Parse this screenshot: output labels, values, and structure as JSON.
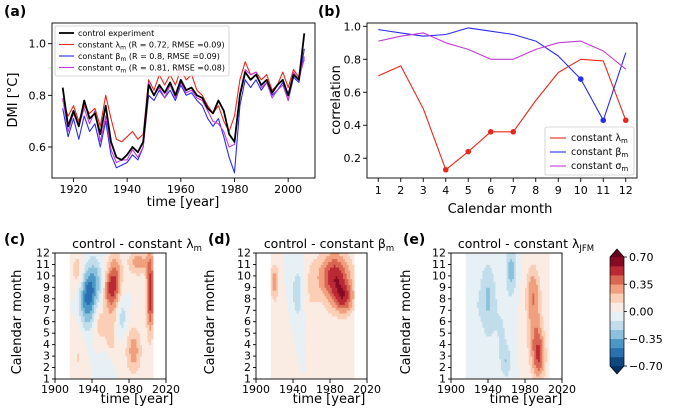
{
  "figure": {
    "panels": [
      {
        "label": "(a)"
      },
      {
        "label": "(b)"
      },
      {
        "label": "(c)",
        "title": "control - constant λ",
        "title_sub": "m"
      },
      {
        "label": "(d)",
        "title": "control - constant β",
        "title_sub": "m"
      },
      {
        "label": "(e)",
        "title": "control - constant λ",
        "title_sub": "JFM"
      }
    ]
  },
  "chart_data": [
    {
      "panel": "(a)",
      "type": "line",
      "xlabel": "time [year]",
      "ylabel": "DMI [°C]",
      "xlim": [
        1912,
        2010
      ],
      "ylim": [
        0.48,
        1.08
      ],
      "xticks": [
        1920,
        1940,
        1960,
        1980,
        2000
      ],
      "yticks": [
        0.6,
        0.8,
        1.0
      ],
      "legend": [
        "control experiment",
        "constant λm (R = 0.72, RMSE =0.09)",
        "constant βm (R = 0.8, RMSE =0.09)",
        "constant σm (R = 0.81, RMSE =0.08)"
      ],
      "x": [
        1916,
        1918,
        1920,
        1922,
        1924,
        1926,
        1928,
        1930,
        1932,
        1934,
        1936,
        1938,
        1940,
        1942,
        1944,
        1946,
        1948,
        1950,
        1952,
        1954,
        1956,
        1958,
        1960,
        1962,
        1964,
        1966,
        1968,
        1970,
        1972,
        1974,
        1976,
        1978,
        1980,
        1982,
        1984,
        1986,
        1988,
        1990,
        1992,
        1994,
        1996,
        1998,
        2000,
        2002,
        2004,
        2006
      ],
      "series": [
        {
          "name": "control experiment",
          "color": "#000000",
          "values": [
            0.83,
            0.68,
            0.74,
            0.68,
            0.78,
            0.71,
            0.73,
            0.65,
            0.76,
            0.62,
            0.56,
            0.55,
            0.57,
            0.6,
            0.58,
            0.62,
            0.84,
            0.8,
            0.84,
            0.81,
            0.85,
            0.8,
            0.86,
            0.82,
            0.83,
            0.8,
            0.79,
            0.75,
            0.73,
            0.78,
            0.74,
            0.65,
            0.62,
            0.8,
            0.89,
            0.86,
            0.88,
            0.84,
            0.86,
            0.81,
            0.84,
            0.86,
            0.8,
            0.88,
            0.86,
            1.04
          ]
        },
        {
          "name": "constant λm",
          "color": "#e8281c",
          "values": [
            0.78,
            0.72,
            0.76,
            0.7,
            0.76,
            0.73,
            0.75,
            0.68,
            0.8,
            0.71,
            0.63,
            0.62,
            0.64,
            0.66,
            0.63,
            0.65,
            0.86,
            0.82,
            0.88,
            0.84,
            0.88,
            0.84,
            0.9,
            0.86,
            0.88,
            0.82,
            0.8,
            0.76,
            0.73,
            0.76,
            0.7,
            0.66,
            0.72,
            0.86,
            0.93,
            0.88,
            0.89,
            0.86,
            0.88,
            0.82,
            0.84,
            0.89,
            0.83,
            0.9,
            0.87,
            0.94
          ]
        },
        {
          "name": "constant βm",
          "color": "#2b2bf0",
          "values": [
            0.75,
            0.64,
            0.71,
            0.63,
            0.72,
            0.66,
            0.69,
            0.6,
            0.7,
            0.57,
            0.52,
            0.53,
            0.54,
            0.57,
            0.55,
            0.6,
            0.8,
            0.78,
            0.82,
            0.79,
            0.82,
            0.78,
            0.84,
            0.8,
            0.81,
            0.78,
            0.76,
            0.71,
            0.68,
            0.71,
            0.64,
            0.56,
            0.5,
            0.76,
            0.86,
            0.83,
            0.86,
            0.82,
            0.85,
            0.8,
            0.82,
            0.85,
            0.78,
            0.87,
            0.85,
            0.98
          ]
        },
        {
          "name": "constant σm",
          "color": "#c33bd6",
          "values": [
            0.79,
            0.66,
            0.73,
            0.68,
            0.75,
            0.69,
            0.74,
            0.62,
            0.72,
            0.59,
            0.54,
            0.55,
            0.55,
            0.59,
            0.56,
            0.6,
            0.85,
            0.8,
            0.83,
            0.79,
            0.84,
            0.79,
            0.85,
            0.81,
            0.82,
            0.79,
            0.78,
            0.74,
            0.7,
            0.69,
            0.66,
            0.6,
            0.61,
            0.81,
            0.9,
            0.88,
            0.89,
            0.83,
            0.85,
            0.79,
            0.82,
            0.84,
            0.78,
            0.89,
            0.86,
            0.95
          ]
        }
      ]
    },
    {
      "panel": "(b)",
      "type": "line",
      "xlabel": "Calendar month",
      "ylabel": "correlation",
      "xlim": [
        0.5,
        12.5
      ],
      "ylim": [
        0.08,
        1.02
      ],
      "xticks": [
        1,
        2,
        3,
        4,
        5,
        6,
        7,
        8,
        9,
        10,
        11,
        12
      ],
      "yticks": [
        0.2,
        0.4,
        0.6,
        0.8,
        1.0
      ],
      "legend": [
        "constant λm",
        "constant βm",
        "constant σm"
      ],
      "x": [
        1,
        2,
        3,
        4,
        5,
        6,
        7,
        8,
        9,
        10,
        11,
        12
      ],
      "series": [
        {
          "name": "constant λm",
          "color": "#e8281c",
          "values": [
            0.7,
            0.76,
            0.5,
            0.13,
            0.24,
            0.36,
            0.36,
            0.55,
            0.72,
            0.8,
            0.79,
            0.43
          ],
          "markers_at": [
            4,
            5,
            6,
            7,
            12
          ]
        },
        {
          "name": "constant βm",
          "color": "#2b2bf0",
          "values": [
            0.98,
            0.96,
            0.94,
            0.95,
            0.99,
            0.97,
            0.95,
            0.91,
            0.82,
            0.68,
            0.43,
            0.84
          ],
          "markers_at": [
            10,
            11
          ]
        },
        {
          "name": "constant σm",
          "color": "#c33bd6",
          "values": [
            0.91,
            0.94,
            0.96,
            0.9,
            0.86,
            0.8,
            0.8,
            0.86,
            0.9,
            0.91,
            0.85,
            0.74
          ],
          "markers_at": []
        }
      ]
    },
    {
      "panel": "(c)",
      "type": "heatmap",
      "title": "control - constant λm",
      "xlabel": "time [year]",
      "ylabel": "Calendar month",
      "xlim": [
        1900,
        2020
      ],
      "ylim": [
        1,
        12
      ],
      "xticks": [
        1900,
        1940,
        1980,
        2020
      ],
      "yticks": [
        1,
        2,
        3,
        4,
        5,
        6,
        7,
        8,
        9,
        10,
        11,
        12
      ],
      "data_extent_years": [
        1916,
        2006
      ],
      "blobs": [
        {
          "x": 1935,
          "y": 8.2,
          "sx": 6,
          "sy": 1.8,
          "v": -0.5
        },
        {
          "x": 1944,
          "y": 9.5,
          "sx": 5,
          "sy": 1.5,
          "v": -0.25
        },
        {
          "x": 1925,
          "y": 10.5,
          "sx": 5,
          "sy": 1.2,
          "v": 0.2
        },
        {
          "x": 1965,
          "y": 9.5,
          "sx": 5,
          "sy": 1.7,
          "v": 0.45
        },
        {
          "x": 1958,
          "y": 8.8,
          "sx": 4,
          "sy": 1.2,
          "v": 0.3
        },
        {
          "x": 1990,
          "y": 11.2,
          "sx": 8,
          "sy": 0.8,
          "v": 0.3
        },
        {
          "x": 2003,
          "y": 8.5,
          "sx": 3,
          "sy": 2.5,
          "v": 0.55
        },
        {
          "x": 1985,
          "y": 3.5,
          "sx": 6,
          "sy": 1.5,
          "v": 0.3
        },
        {
          "x": 1960,
          "y": 5.0,
          "sx": 5,
          "sy": 1.5,
          "v": 0.2
        },
        {
          "x": 1972,
          "y": 6.5,
          "sx": 4,
          "sy": 1.2,
          "v": -0.2
        },
        {
          "x": 1948,
          "y": 6.0,
          "sx": 4,
          "sy": 1.2,
          "v": 0.18
        },
        {
          "x": 1925,
          "y": 3.0,
          "sx": 5,
          "sy": 2.0,
          "v": 0.12
        },
        {
          "x": 1955,
          "y": 2.0,
          "sx": 5,
          "sy": 1.2,
          "v": -0.12
        }
      ]
    },
    {
      "panel": "(d)",
      "type": "heatmap",
      "title": "control - constant βm",
      "xlabel": "time [year]",
      "ylabel": "Calendar month",
      "xlim": [
        1900,
        2020
      ],
      "ylim": [
        1,
        12
      ],
      "xticks": [
        1900,
        1940,
        1980,
        2020
      ],
      "yticks": [
        1,
        2,
        3,
        4,
        5,
        6,
        7,
        8,
        9,
        10,
        11,
        12
      ],
      "data_extent_years": [
        1916,
        2006
      ],
      "blobs": [
        {
          "x": 1985,
          "y": 10.0,
          "sx": 12,
          "sy": 1.5,
          "v": 0.55
        },
        {
          "x": 1995,
          "y": 8.0,
          "sx": 8,
          "sy": 1.0,
          "v": 0.4
        },
        {
          "x": 1920,
          "y": 9.5,
          "sx": 3,
          "sy": 1.2,
          "v": 0.3
        },
        {
          "x": 1945,
          "y": 8.5,
          "sx": 5,
          "sy": 2.0,
          "v": -0.18
        },
        {
          "x": 1960,
          "y": 9.0,
          "sx": 6,
          "sy": 2.0,
          "v": 0.12
        },
        {
          "x": 1930,
          "y": 3.0,
          "sx": 6,
          "sy": 2.5,
          "v": 0.08
        },
        {
          "x": 1978,
          "y": 4.0,
          "sx": 6,
          "sy": 2.5,
          "v": 0.08
        }
      ]
    },
    {
      "panel": "(e)",
      "type": "heatmap",
      "title": "control - constant λJFM",
      "xlabel": "time [year]",
      "ylabel": "Calendar month",
      "xlim": [
        1900,
        2020
      ],
      "ylim": [
        1,
        12
      ],
      "xticks": [
        1900,
        1940,
        1980,
        2020
      ],
      "yticks": [
        1,
        2,
        3,
        4,
        5,
        6,
        7,
        8,
        9,
        10,
        11,
        12
      ],
      "data_extent_years": [
        1916,
        2006
      ],
      "blobs": [
        {
          "x": 1940,
          "y": 8.0,
          "sx": 6,
          "sy": 2.5,
          "v": -0.25
        },
        {
          "x": 1965,
          "y": 10.5,
          "sx": 4,
          "sy": 1.5,
          "v": -0.3
        },
        {
          "x": 1925,
          "y": 7.0,
          "sx": 5,
          "sy": 3.0,
          "v": -0.1
        },
        {
          "x": 1955,
          "y": 5.0,
          "sx": 6,
          "sy": 2.5,
          "v": -0.12
        },
        {
          "x": 1990,
          "y": 6.0,
          "sx": 6,
          "sy": 2.5,
          "v": 0.28
        },
        {
          "x": 1995,
          "y": 3.0,
          "sx": 5,
          "sy": 1.5,
          "v": 0.4
        },
        {
          "x": 1988,
          "y": 9.0,
          "sx": 5,
          "sy": 1.5,
          "v": 0.2
        },
        {
          "x": 1960,
          "y": 2.5,
          "sx": 4,
          "sy": 1.0,
          "v": -0.18
        }
      ]
    },
    {
      "type": "colorbar",
      "vmin": -0.7,
      "vmax": 0.7,
      "ticks": [
        "0.70",
        "0.35",
        "0.00",
        "−0.35",
        "−0.70"
      ],
      "tick_values": [
        0.7,
        0.35,
        0.0,
        -0.35,
        -0.7
      ]
    }
  ]
}
